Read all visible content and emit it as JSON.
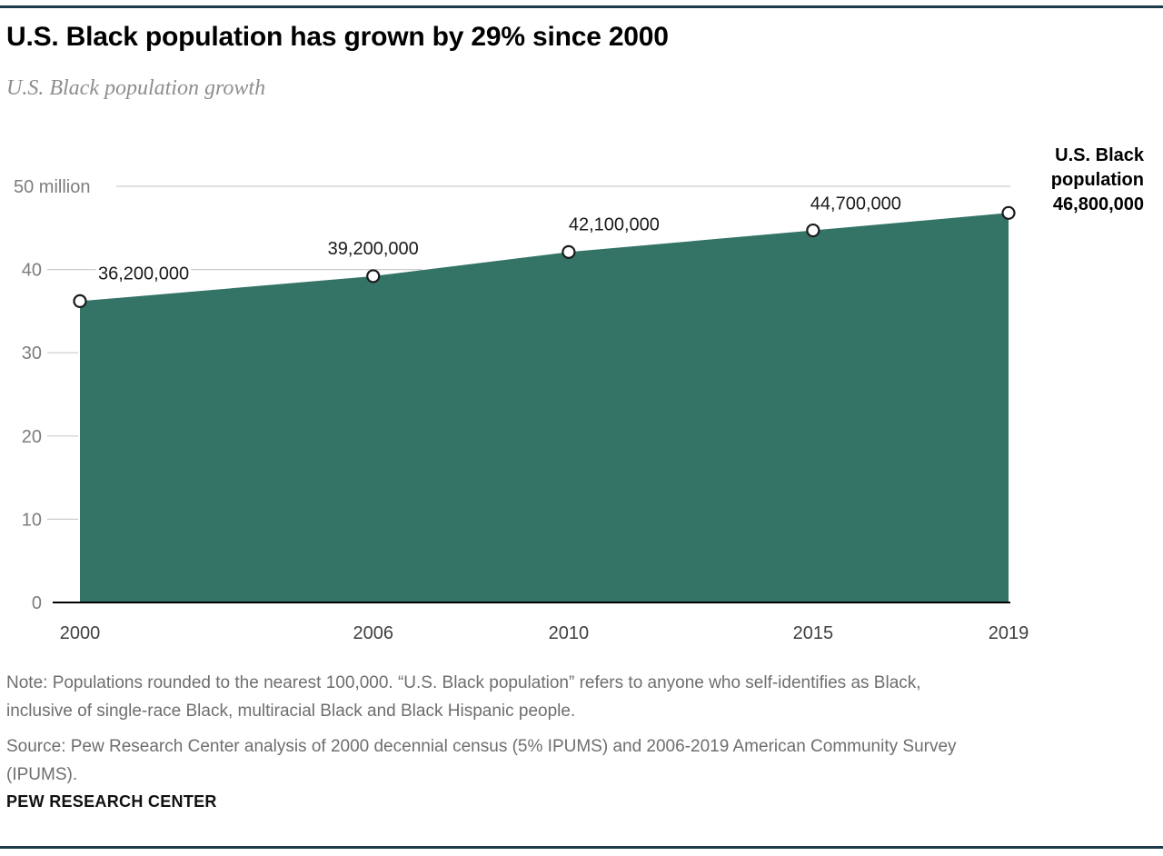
{
  "header": {
    "title": "U.S. Black population has grown by 29% since 2000",
    "subtitle": "U.S. Black population growth"
  },
  "chart_data": {
    "type": "area",
    "title": "U.S. Black population growth",
    "x": [
      2000,
      2006,
      2010,
      2015,
      2019
    ],
    "values": [
      36200000,
      39200000,
      42100000,
      44700000,
      46800000
    ],
    "point_labels": [
      "36,200,000",
      "39,200,000",
      "42,100,000",
      "44,700,000",
      "46,800,000"
    ],
    "x_tick_labels": [
      "2000",
      "2006",
      "2010",
      "2015",
      "2019"
    ],
    "y_ticks": [
      {
        "value": 0,
        "label": "0"
      },
      {
        "value": 10000000,
        "label": "10"
      },
      {
        "value": 20000000,
        "label": "20"
      },
      {
        "value": 30000000,
        "label": "30"
      },
      {
        "value": 40000000,
        "label": "40"
      },
      {
        "value": 50000000,
        "label": "50 million"
      }
    ],
    "ylim": [
      0,
      50000000
    ],
    "grid": "partial",
    "legend_position": "right-annotation",
    "annotation": {
      "label": "U.S. Black population",
      "value": "46,800,000"
    },
    "colors": {
      "area": "#337467",
      "grid": "#cccccc",
      "axis": "#000000",
      "rule": "#1d3a4a",
      "marker_stroke": "#1a1a1a"
    }
  },
  "footer": {
    "note_lines": [
      "Note: Populations rounded to the nearest 100,000. “U.S. Black population” refers to anyone who self-identifies as Black,",
      "inclusive of single-race Black, multiracial Black and Black Hispanic people."
    ],
    "source_lines": [
      "Source: Pew Research Center analysis of 2000 decennial census (5% IPUMS) and 2006-2019 American Community Survey",
      "(IPUMS)."
    ],
    "brand": "PEW RESEARCH CENTER"
  }
}
